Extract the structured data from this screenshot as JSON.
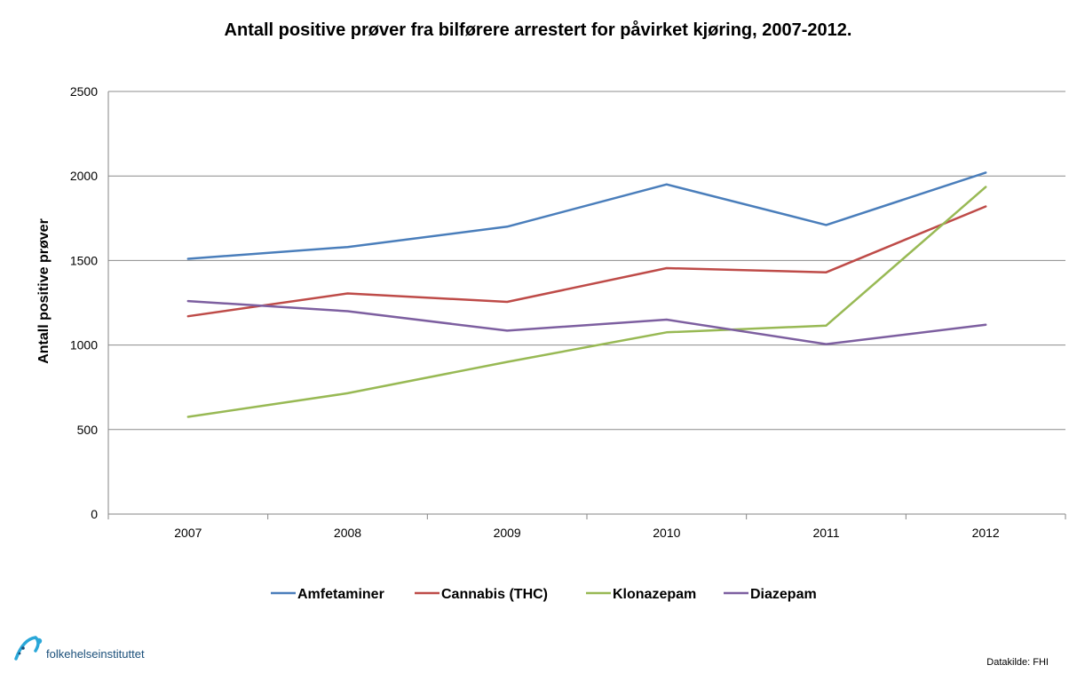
{
  "chart_data": {
    "type": "line",
    "title": "Antall positive prøver fra bilførere arrestert for påvirket kjøring, 2007-2012.",
    "ylabel": "Antall positive prøver",
    "xlabel": "",
    "categories": [
      "2007",
      "2008",
      "2009",
      "2010",
      "2011",
      "2012"
    ],
    "ylim": [
      0,
      2500
    ],
    "yticks": [
      0,
      500,
      1000,
      1500,
      2000,
      2500
    ],
    "grid": "horizontal",
    "legend_position": "bottom",
    "series": [
      {
        "name": "Amfetaminer",
        "color": "#4a7ebb",
        "values": [
          1510,
          1580,
          1700,
          1950,
          1710,
          2020
        ]
      },
      {
        "name": "Cannabis (THC)",
        "color": "#be4b48",
        "values": [
          1170,
          1305,
          1255,
          1455,
          1430,
          1820
        ]
      },
      {
        "name": "Klonazepam",
        "color": "#98b954",
        "values": [
          575,
          715,
          900,
          1075,
          1115,
          1935
        ]
      },
      {
        "name": "Diazepam",
        "color": "#7d5fa0",
        "values": [
          1260,
          1200,
          1085,
          1150,
          1005,
          1120
        ]
      }
    ]
  },
  "footer": {
    "logo_text": "folkehelseinstituttet",
    "logo_icon": "fhi-logo-icon",
    "source": "Datakilde: FHI"
  }
}
